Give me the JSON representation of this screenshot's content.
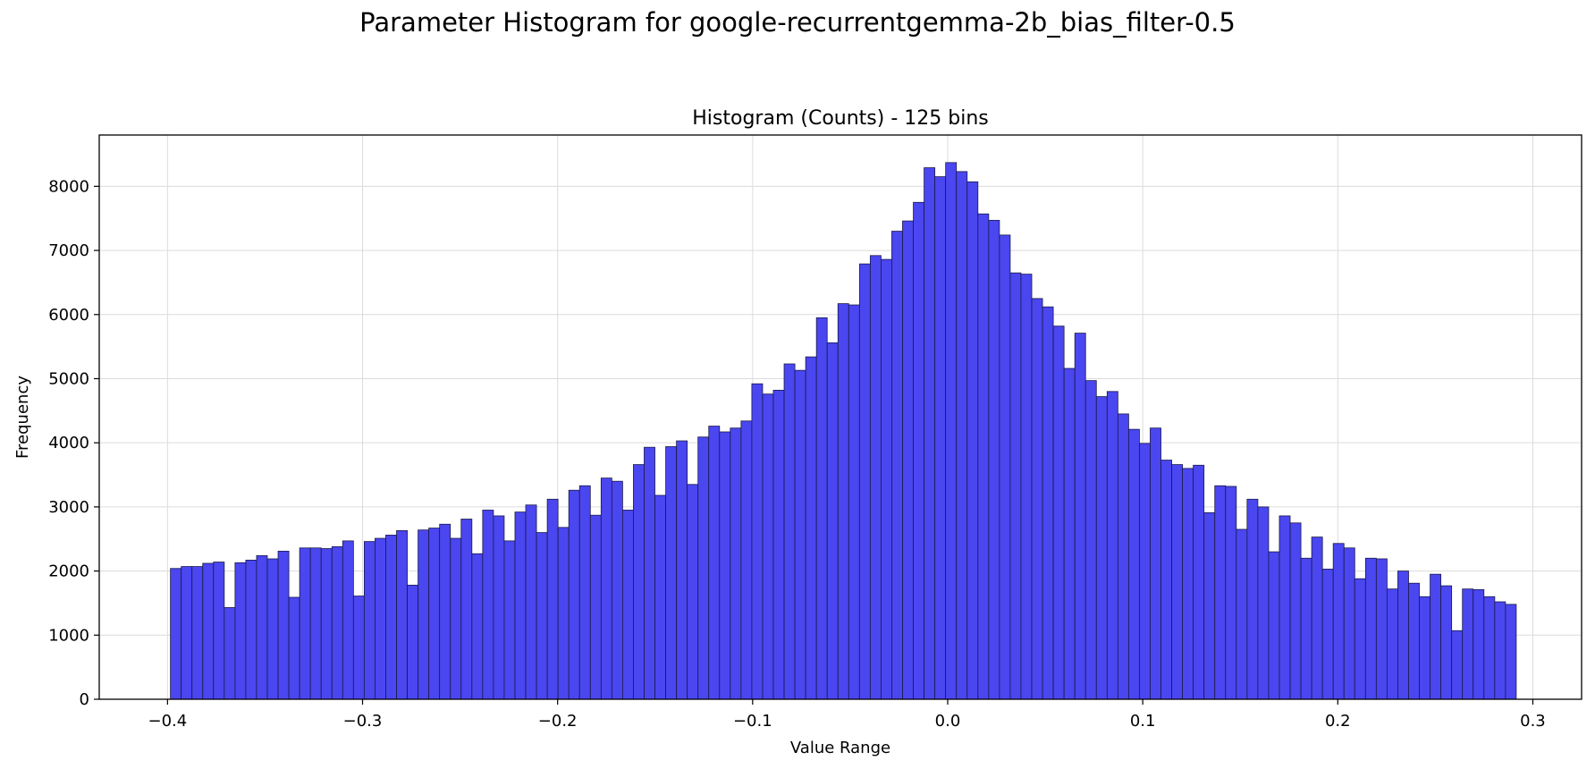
{
  "suptitle": "Parameter Histogram for google-recurrentgemma-2b_bias_filter-0.5",
  "chart_data": {
    "type": "bar",
    "title": "Histogram (Counts) - 125 bins",
    "xlabel": "Value Range",
    "ylabel": "Frequency",
    "bin_start": -0.3985,
    "bin_end": 0.2915,
    "xlim": [
      -0.435,
      0.325
    ],
    "ylim": [
      0,
      8800
    ],
    "xticks": [
      -0.4,
      -0.3,
      -0.2,
      -0.1,
      0.0,
      0.1,
      0.2,
      0.3
    ],
    "xtick_labels": [
      "−0.4",
      "−0.3",
      "−0.2",
      "−0.1",
      "0.0",
      "0.1",
      "0.2",
      "0.3"
    ],
    "yticks": [
      0,
      1000,
      2000,
      3000,
      4000,
      5000,
      6000,
      7000,
      8000
    ],
    "ytick_labels": [
      "0",
      "1000",
      "2000",
      "3000",
      "4000",
      "5000",
      "6000",
      "7000",
      "8000"
    ],
    "grid": true,
    "bar_color": "#4a46f0",
    "edge_color": "#1a1a4a",
    "values": [
      2040,
      2070,
      2070,
      2120,
      2140,
      1430,
      2130,
      2170,
      2240,
      2190,
      2310,
      1590,
      2360,
      2360,
      2350,
      2380,
      2470,
      1610,
      2460,
      2510,
      2560,
      2630,
      1780,
      2640,
      2670,
      2730,
      2510,
      2810,
      2270,
      2950,
      2860,
      2470,
      2920,
      3030,
      2600,
      3120,
      2680,
      3260,
      3330,
      2870,
      3450,
      3400,
      2950,
      3660,
      3930,
      3180,
      3940,
      4030,
      3350,
      4090,
      4260,
      4170,
      4230,
      4340,
      4920,
      4760,
      4820,
      5230,
      5130,
      5340,
      5950,
      5560,
      6170,
      6150,
      6790,
      6920,
      6860,
      7300,
      7460,
      7750,
      8290,
      8150,
      8370,
      8230,
      8070,
      7570,
      7470,
      7240,
      6650,
      6630,
      6250,
      6120,
      5820,
      5160,
      5710,
      4970,
      4720,
      4800,
      4450,
      4210,
      3990,
      4230,
      3730,
      3660,
      3600,
      3650,
      2910,
      3330,
      3320,
      2650,
      3120,
      3000,
      2300,
      2860,
      2750,
      2200,
      2530,
      2030,
      2430,
      2360,
      1880,
      2200,
      2190,
      1720,
      2000,
      1810,
      1600,
      1950,
      1770,
      1070,
      1720,
      1710,
      1600,
      1520,
      1480
    ]
  }
}
